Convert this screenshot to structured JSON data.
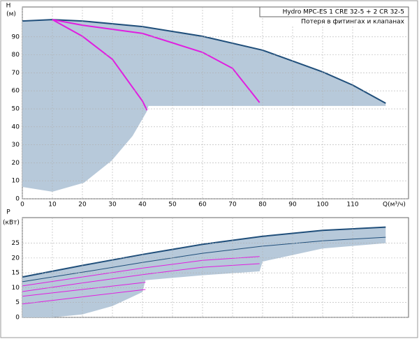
{
  "chart_data": [
    {
      "type": "line",
      "y_label": "H",
      "y_unit": "(м)",
      "x_label": "Q(м³/ч)",
      "legend_title": "Hydro MPC-ES 1 CRE 32-5  +  2 CR 32-5",
      "note": "Потеря в фитингах и клапанах",
      "xlim": [
        0,
        128.6
      ],
      "ylim": [
        0,
        106.6
      ],
      "xticks": [
        0,
        10,
        20,
        30,
        40,
        50,
        60,
        70,
        80,
        90,
        100,
        110
      ],
      "yticks": [
        0,
        10,
        20,
        30,
        40,
        50,
        60,
        70,
        80,
        90
      ],
      "grid": true,
      "series": [
        {
          "style": "area",
          "color": "#b7c9da",
          "x": [
            0,
            10,
            20,
            40,
            60,
            80,
            100,
            110,
            121,
            121,
            42,
            41.4,
            36.7,
            29.8,
            20.5,
            10,
            0
          ],
          "values": [
            98.8,
            99.6,
            98.8,
            95.7,
            90.3,
            82.6,
            70.5,
            63.2,
            53.1,
            51.6,
            51.6,
            48.4,
            34.9,
            21.3,
            8.9,
            3.9,
            6.6
          ]
        },
        {
          "style": "line",
          "color": "#1f4e7a",
          "width": 2,
          "x": [
            0,
            10,
            20,
            40,
            60,
            80,
            100,
            110,
            121
          ],
          "values": [
            98.8,
            99.6,
            98.8,
            95.7,
            90.3,
            82.6,
            70.5,
            63.2,
            53.1
          ]
        },
        {
          "style": "line",
          "color": "#e01ee0",
          "width": 2,
          "x": [
            10,
            20,
            30,
            40,
            41.5
          ],
          "values": [
            99.6,
            90.3,
            77.5,
            54.3,
            49.2
          ]
        },
        {
          "style": "line",
          "color": "#e01ee0",
          "width": 2,
          "x": [
            10,
            20,
            40,
            60,
            70,
            79
          ],
          "values": [
            99.6,
            96.5,
            91.9,
            81.4,
            72.5,
            53.5
          ]
        }
      ]
    },
    {
      "type": "line",
      "y_label": "P",
      "y_unit": "(кВт)",
      "xlim": [
        0,
        128.6
      ],
      "ylim": [
        0,
        33.6
      ],
      "yticks": [
        0,
        5,
        10,
        15,
        20,
        25
      ],
      "grid": true,
      "series": [
        {
          "style": "area",
          "color": "#b7c9da",
          "x": [
            0,
            20,
            40,
            60,
            80,
            100,
            121,
            121,
            100,
            80,
            79,
            60,
            41,
            40,
            30,
            20,
            10,
            0
          ],
          "values": [
            13.6,
            17.5,
            21.2,
            24.6,
            27.3,
            29.3,
            30.4,
            25,
            23.2,
            18.8,
            15.5,
            14.2,
            12.5,
            8.5,
            3.8,
            1,
            0,
            0
          ]
        },
        {
          "style": "line",
          "color": "#1f4e7a",
          "width": 2,
          "x": [
            0,
            20,
            40,
            60,
            80,
            100,
            121
          ],
          "values": [
            13.6,
            17.5,
            21.2,
            24.6,
            27.3,
            29.3,
            30.4
          ]
        },
        {
          "style": "line",
          "color": "#1f4e7a",
          "width": 1,
          "x": [
            0,
            20,
            40,
            60,
            80,
            100,
            121
          ],
          "values": [
            12,
            15.2,
            18.5,
            21.6,
            24,
            25.8,
            27
          ]
        },
        {
          "style": "line",
          "color": "#e01ee0",
          "width": 1,
          "x": [
            0,
            20,
            40,
            60,
            79
          ],
          "values": [
            10.6,
            13.6,
            16.6,
            19.2,
            20.5
          ]
        },
        {
          "style": "line",
          "color": "#e01ee0",
          "width": 1,
          "x": [
            0,
            20,
            40,
            60,
            79
          ],
          "values": [
            8.7,
            11.6,
            14.4,
            16.9,
            18.1
          ]
        },
        {
          "style": "line",
          "color": "#e01ee0",
          "width": 1,
          "x": [
            0,
            20,
            41
          ],
          "values": [
            7.1,
            9.4,
            11.8
          ]
        },
        {
          "style": "line",
          "color": "#e01ee0",
          "width": 1,
          "x": [
            0,
            20,
            41
          ],
          "values": [
            4.5,
            6.9,
            9.4
          ]
        }
      ]
    }
  ]
}
